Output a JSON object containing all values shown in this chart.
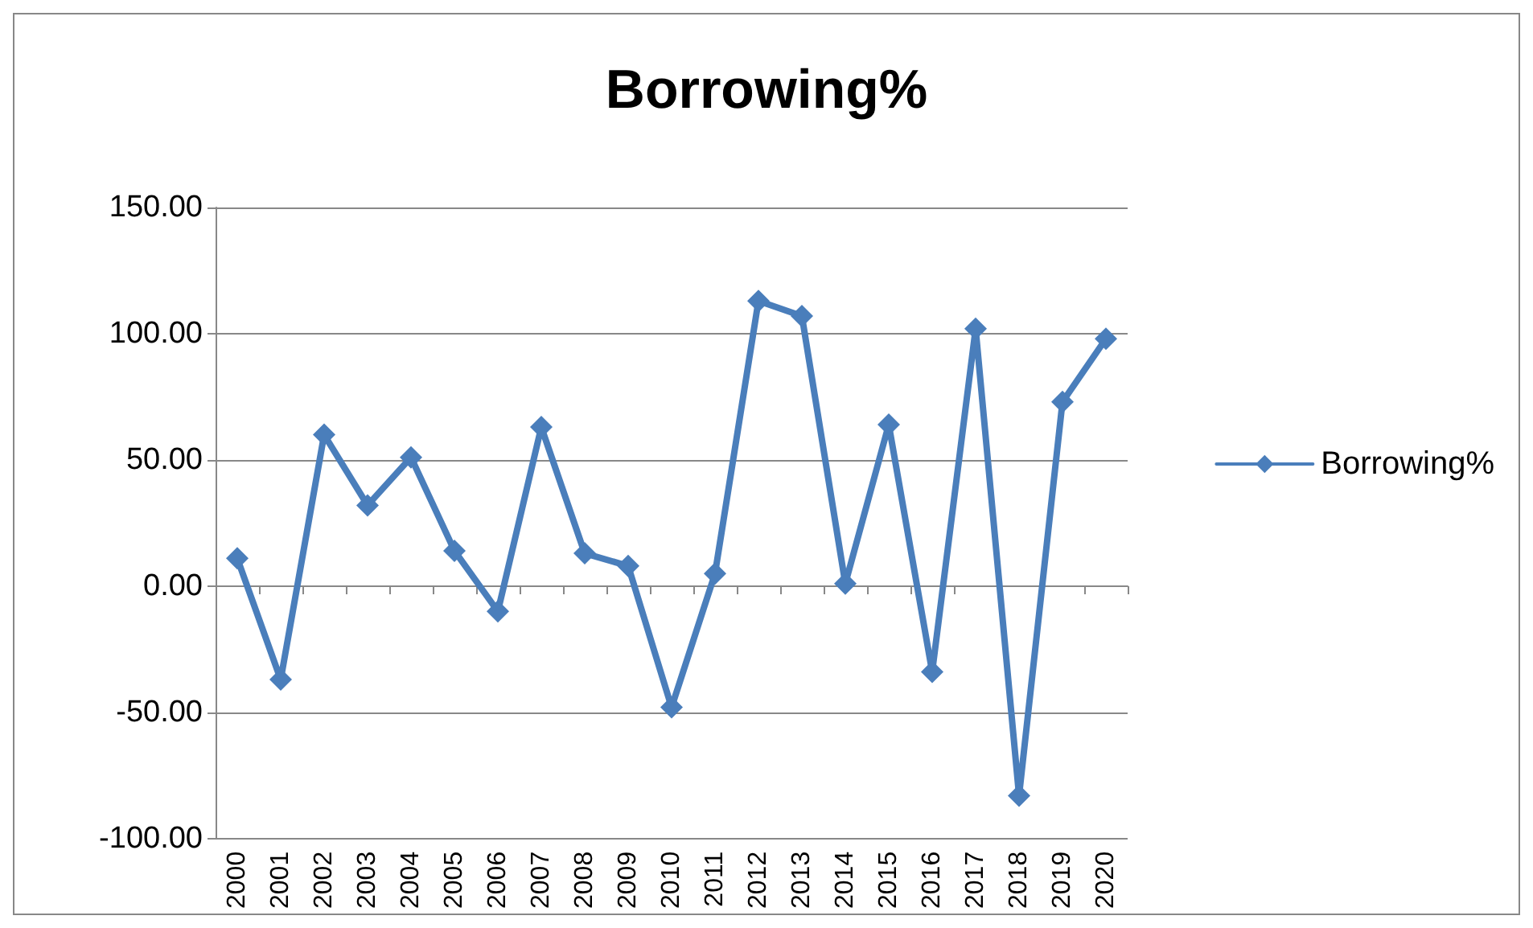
{
  "chart_data": {
    "type": "line",
    "title": "Borrowing%",
    "categories": [
      "2000",
      "2001",
      "2002",
      "2003",
      "2004",
      "2005",
      "2006",
      "2007",
      "2008",
      "2009",
      "2010",
      "2011",
      "2012",
      "2013",
      "2014",
      "2015",
      "2016",
      "2017",
      "2018",
      "2019",
      "2020"
    ],
    "series": [
      {
        "name": "Borrowing%",
        "color": "#4a7ebb",
        "values": [
          11,
          -37,
          60,
          32,
          51,
          14,
          -10,
          63,
          13,
          8,
          -48,
          5,
          113,
          107,
          1,
          64,
          -34,
          102,
          -83,
          73,
          98
        ]
      }
    ],
    "ylim": [
      -100,
      150
    ],
    "yticks": [
      {
        "value": -100,
        "label": "-100.00"
      },
      {
        "value": -50,
        "label": "-50.00"
      },
      {
        "value": 0,
        "label": "0.00"
      },
      {
        "value": 50,
        "label": "50.00"
      },
      {
        "value": 100,
        "label": "100.00"
      },
      {
        "value": 150,
        "label": "150.00"
      }
    ],
    "grid": "y",
    "legend": "right",
    "marker": "diamond",
    "line_style": "solid"
  }
}
